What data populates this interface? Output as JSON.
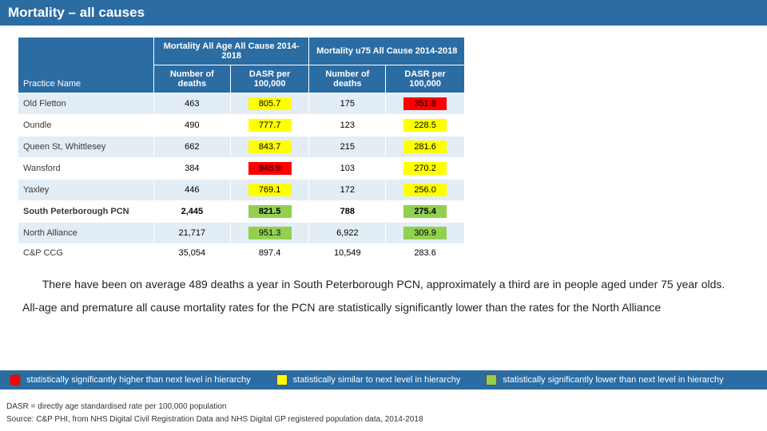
{
  "title": "Mortality – all causes",
  "colors": {
    "header_bg": "#2b6ca3",
    "stripe_odd": "#e3edf6",
    "sig_high": "#ff0000",
    "sig_similar": "#ffff00",
    "sig_low": "#92d050"
  },
  "table": {
    "name_header": "Practice Name",
    "group_headers": [
      "Mortality All Age All Cause 2014-2018",
      "Mortality u75 All Cause 2014-2018"
    ],
    "sub_headers": [
      "Number of deaths",
      "DASR per 100,000",
      "Number of deaths",
      "DASR per 100,000"
    ],
    "rows": [
      {
        "name": "Old Fletton",
        "v": [
          "463",
          "805.7",
          "175",
          "351.8"
        ],
        "sig": [
          "none",
          "yellow",
          "none",
          "red"
        ],
        "bold": false
      },
      {
        "name": "Oundle",
        "v": [
          "490",
          "777.7",
          "123",
          "228.5"
        ],
        "sig": [
          "none",
          "yellow",
          "none",
          "yellow"
        ],
        "bold": false
      },
      {
        "name": "Queen St, Whittlesey",
        "v": [
          "662",
          "843.7",
          "215",
          "281.6"
        ],
        "sig": [
          "none",
          "yellow",
          "none",
          "yellow"
        ],
        "bold": false
      },
      {
        "name": "Wansford",
        "v": [
          "384",
          "948.9",
          "103",
          "270.2"
        ],
        "sig": [
          "none",
          "red",
          "none",
          "yellow"
        ],
        "bold": false
      },
      {
        "name": "Yaxley",
        "v": [
          "446",
          "769.1",
          "172",
          "256.0"
        ],
        "sig": [
          "none",
          "yellow",
          "none",
          "yellow"
        ],
        "bold": false
      },
      {
        "name": "South Peterborough PCN",
        "v": [
          "2,445",
          "821.5",
          "788",
          "275.4"
        ],
        "sig": [
          "none",
          "green",
          "none",
          "green"
        ],
        "bold": true
      },
      {
        "name": "North Alliance",
        "v": [
          "21,717",
          "951.3",
          "6,922",
          "309.9"
        ],
        "sig": [
          "none",
          "green",
          "none",
          "green"
        ],
        "bold": false
      },
      {
        "name": "C&P CCG",
        "v": [
          "35,054",
          "897.4",
          "10,549",
          "283.6"
        ],
        "sig": [
          "none",
          "none",
          "none",
          "none"
        ],
        "bold": false
      }
    ]
  },
  "commentary": [
    "There have been on average 489 deaths a year in South Peterborough PCN, approximately a third are in people aged under 75 year olds.",
    "All-age and premature all cause mortality rates for the PCN are statistically significantly lower than the rates for the North Alliance"
  ],
  "legend": [
    {
      "color": "#ff0000",
      "label": "statistically significantly higher than next level in hierarchy"
    },
    {
      "color": "#ffff00",
      "label": "statistically similar to next level in hierarchy"
    },
    {
      "color": "#92d050",
      "label": "statistically significantly lower than next level in hierarchy"
    }
  ],
  "footnotes": [
    "DASR = directly age standardised rate per 100,000 population",
    "Source: C&P PHI, from NHS Digital Civil Registration Data and NHS Digital GP registered population data, 2014-2018"
  ]
}
